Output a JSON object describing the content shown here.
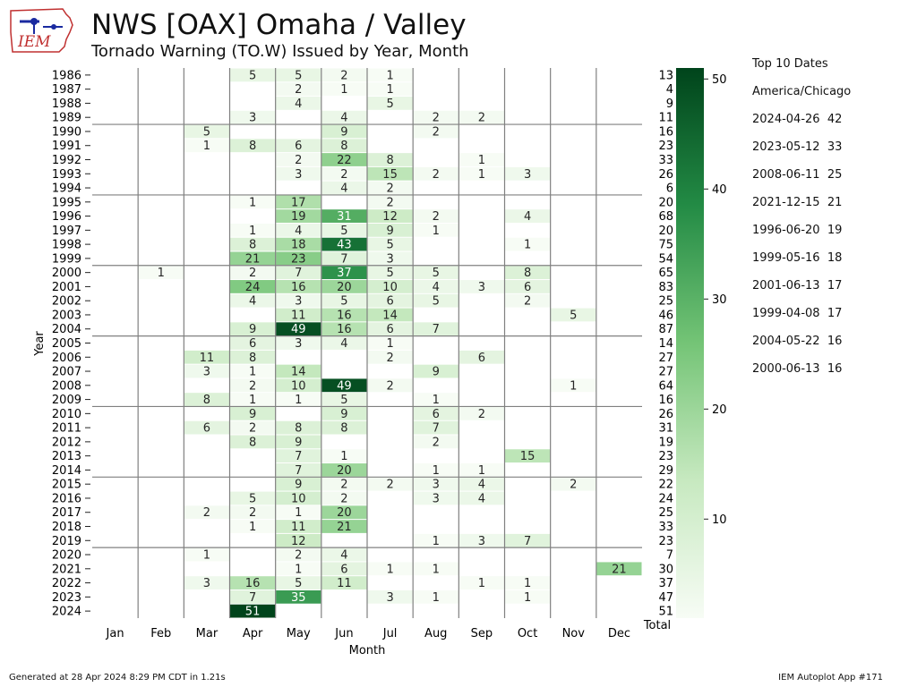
{
  "header": {
    "title": "NWS [OAX] Omaha / Valley",
    "subtitle": "Tornado Warning (TO.W) Issued by Year, Month",
    "logo_text": "IEM"
  },
  "top10": {
    "heading": "Top 10 Dates",
    "timezone": "America/Chicago",
    "items": [
      "2024-04-26  42",
      "2023-05-12  33",
      "2008-06-11  25",
      "2021-12-15  21",
      "1996-06-20  19",
      "1999-05-16  18",
      "2001-06-13  17",
      "1999-04-08  17",
      "2004-05-22  16",
      "2000-06-13  16"
    ]
  },
  "footer": {
    "left": "Generated at 28 Apr 2024 8:29 PM CDT in 1.21s",
    "right": "IEM Autoplot App #171"
  },
  "chart_data": {
    "type": "heatmap",
    "xlabel": "Month",
    "ylabel": "Year",
    "total_label": "Total",
    "months": [
      "Jan",
      "Feb",
      "Mar",
      "Apr",
      "May",
      "Jun",
      "Jul",
      "Aug",
      "Sep",
      "Oct",
      "Nov",
      "Dec"
    ],
    "years": [
      1986,
      1987,
      1988,
      1989,
      1990,
      1991,
      1992,
      1993,
      1994,
      1995,
      1996,
      1997,
      1998,
      1999,
      2000,
      2001,
      2002,
      2003,
      2004,
      2005,
      2006,
      2007,
      2008,
      2009,
      2010,
      2011,
      2012,
      2013,
      2014,
      2015,
      2016,
      2017,
      2018,
      2019,
      2020,
      2021,
      2022,
      2023,
      2024
    ],
    "values": [
      [
        null,
        null,
        null,
        5,
        5,
        2,
        1,
        null,
        null,
        null,
        null,
        null
      ],
      [
        null,
        null,
        null,
        null,
        2,
        1,
        1,
        null,
        null,
        null,
        null,
        null
      ],
      [
        null,
        null,
        null,
        null,
        4,
        null,
        5,
        null,
        null,
        null,
        null,
        null
      ],
      [
        null,
        null,
        null,
        3,
        null,
        4,
        null,
        2,
        2,
        null,
        null,
        null
      ],
      [
        null,
        null,
        5,
        null,
        null,
        9,
        null,
        2,
        null,
        null,
        null,
        null
      ],
      [
        null,
        null,
        1,
        8,
        6,
        8,
        null,
        null,
        null,
        null,
        null,
        null
      ],
      [
        null,
        null,
        null,
        null,
        2,
        22,
        8,
        null,
        1,
        null,
        null,
        null
      ],
      [
        null,
        null,
        null,
        null,
        3,
        2,
        15,
        2,
        1,
        3,
        null,
        null
      ],
      [
        null,
        null,
        null,
        null,
        null,
        4,
        2,
        null,
        null,
        null,
        null,
        null
      ],
      [
        null,
        null,
        null,
        1,
        17,
        null,
        2,
        null,
        null,
        null,
        null,
        null
      ],
      [
        null,
        null,
        null,
        null,
        19,
        31,
        12,
        2,
        null,
        4,
        null,
        null
      ],
      [
        null,
        null,
        null,
        1,
        4,
        5,
        9,
        1,
        null,
        null,
        null,
        null
      ],
      [
        null,
        null,
        null,
        8,
        18,
        43,
        5,
        null,
        null,
        1,
        null,
        null
      ],
      [
        null,
        null,
        null,
        21,
        23,
        7,
        3,
        null,
        null,
        null,
        null,
        null
      ],
      [
        null,
        1,
        null,
        2,
        7,
        37,
        5,
        5,
        null,
        8,
        null,
        null
      ],
      [
        null,
        null,
        null,
        24,
        16,
        20,
        10,
        4,
        3,
        6,
        null,
        null
      ],
      [
        null,
        null,
        null,
        4,
        3,
        5,
        6,
        5,
        null,
        2,
        null,
        null
      ],
      [
        null,
        null,
        null,
        null,
        11,
        16,
        14,
        null,
        null,
        null,
        5,
        null
      ],
      [
        null,
        null,
        null,
        9,
        49,
        16,
        6,
        7,
        null,
        null,
        null,
        null
      ],
      [
        null,
        null,
        null,
        6,
        3,
        4,
        1,
        null,
        null,
        null,
        null,
        null
      ],
      [
        null,
        null,
        11,
        8,
        null,
        null,
        2,
        null,
        6,
        null,
        null,
        null
      ],
      [
        null,
        null,
        3,
        1,
        14,
        null,
        null,
        9,
        null,
        null,
        null,
        null
      ],
      [
        null,
        null,
        null,
        2,
        10,
        49,
        2,
        null,
        null,
        null,
        1,
        null
      ],
      [
        null,
        null,
        8,
        1,
        1,
        5,
        null,
        1,
        null,
        null,
        null,
        null
      ],
      [
        null,
        null,
        null,
        9,
        null,
        9,
        null,
        6,
        2,
        null,
        null,
        null
      ],
      [
        null,
        null,
        6,
        2,
        8,
        8,
        null,
        7,
        null,
        null,
        null,
        null
      ],
      [
        null,
        null,
        null,
        8,
        9,
        null,
        null,
        2,
        null,
        null,
        null,
        null
      ],
      [
        null,
        null,
        null,
        null,
        7,
        1,
        null,
        null,
        null,
        15,
        null,
        null
      ],
      [
        null,
        null,
        null,
        null,
        7,
        20,
        null,
        1,
        1,
        null,
        null,
        null
      ],
      [
        null,
        null,
        null,
        null,
        9,
        2,
        2,
        3,
        4,
        null,
        2,
        null
      ],
      [
        null,
        null,
        null,
        5,
        10,
        2,
        null,
        3,
        4,
        null,
        null,
        null
      ],
      [
        null,
        null,
        2,
        2,
        1,
        20,
        null,
        null,
        null,
        null,
        null,
        null
      ],
      [
        null,
        null,
        null,
        1,
        11,
        21,
        null,
        null,
        null,
        null,
        null,
        null
      ],
      [
        null,
        null,
        null,
        null,
        12,
        null,
        null,
        1,
        3,
        7,
        null,
        null
      ],
      [
        null,
        null,
        1,
        null,
        2,
        4,
        null,
        null,
        null,
        null,
        null,
        null
      ],
      [
        null,
        null,
        null,
        null,
        1,
        6,
        1,
        1,
        null,
        null,
        null,
        21
      ],
      [
        null,
        null,
        3,
        16,
        5,
        11,
        null,
        null,
        1,
        1,
        null,
        null
      ],
      [
        null,
        null,
        null,
        7,
        35,
        null,
        3,
        1,
        null,
        1,
        null,
        null
      ],
      [
        null,
        null,
        null,
        51,
        null,
        null,
        null,
        null,
        null,
        null,
        null,
        null
      ]
    ],
    "totals": [
      13,
      4,
      9,
      11,
      16,
      23,
      33,
      26,
      6,
      20,
      68,
      20,
      75,
      54,
      65,
      83,
      25,
      46,
      87,
      14,
      27,
      27,
      64,
      16,
      26,
      31,
      19,
      23,
      29,
      22,
      24,
      25,
      33,
      23,
      7,
      30,
      37,
      47,
      51
    ],
    "colorbar": {
      "min": 1,
      "max": 51,
      "ticks": [
        10,
        20,
        30,
        40,
        50
      ]
    },
    "colors": {
      "low": "#f7fcf5",
      "high": "#00441b",
      "grid": "#808080"
    }
  }
}
